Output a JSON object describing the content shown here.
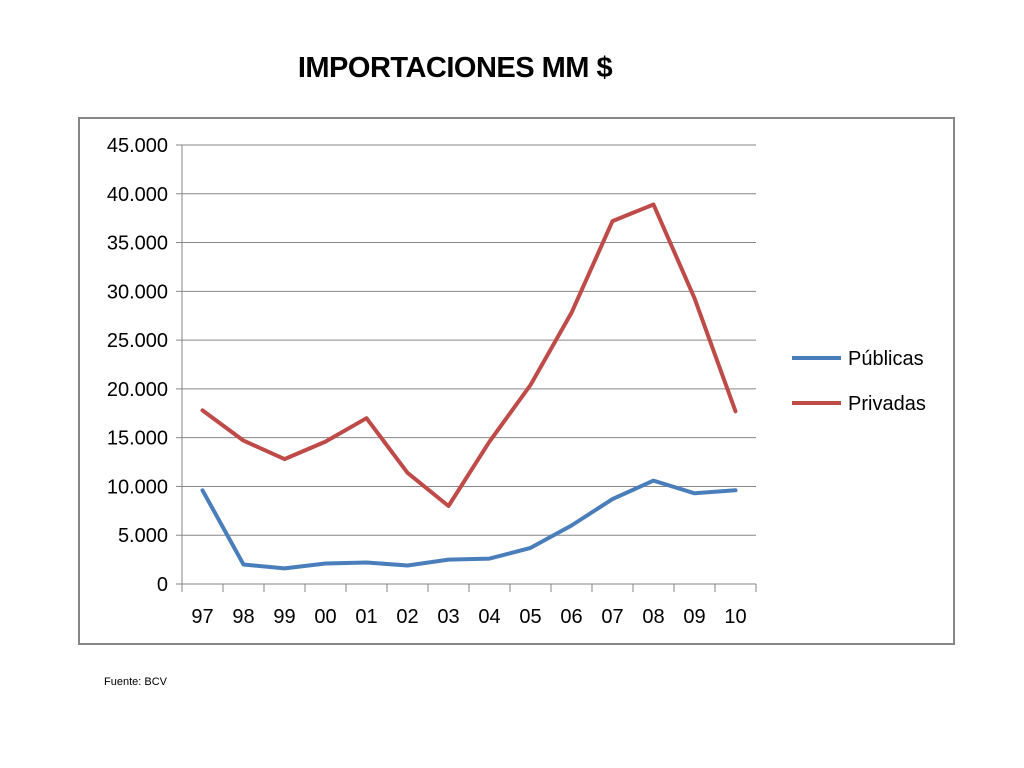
{
  "title": "IMPORTACIONES MM $",
  "source": "Fuente: BCV",
  "chart_data": {
    "type": "line",
    "title": "IMPORTACIONES MM $",
    "xlabel": "",
    "ylabel": "",
    "categories": [
      "97",
      "98",
      "99",
      "00",
      "01",
      "02",
      "03",
      "04",
      "05",
      "06",
      "07",
      "08",
      "09",
      "10"
    ],
    "yticks": [
      "0",
      "5.000",
      "10.000",
      "15.000",
      "20.000",
      "25.000",
      "30.000",
      "35.000",
      "40.000",
      "45.000"
    ],
    "ylim": [
      0,
      45000
    ],
    "grid": true,
    "legend_position": "right",
    "series": [
      {
        "name": "Públicas",
        "color": "#4a7ebb",
        "values": [
          9600,
          2000,
          1600,
          2100,
          2200,
          1900,
          2500,
          2600,
          3700,
          6000,
          8700,
          10600,
          9300,
          9600
        ]
      },
      {
        "name": "Privadas",
        "color": "#be4b48",
        "values": [
          17800,
          14700,
          12800,
          14600,
          17000,
          11400,
          8000,
          14600,
          20400,
          27800,
          37200,
          38900,
          29300,
          17700
        ]
      }
    ]
  }
}
